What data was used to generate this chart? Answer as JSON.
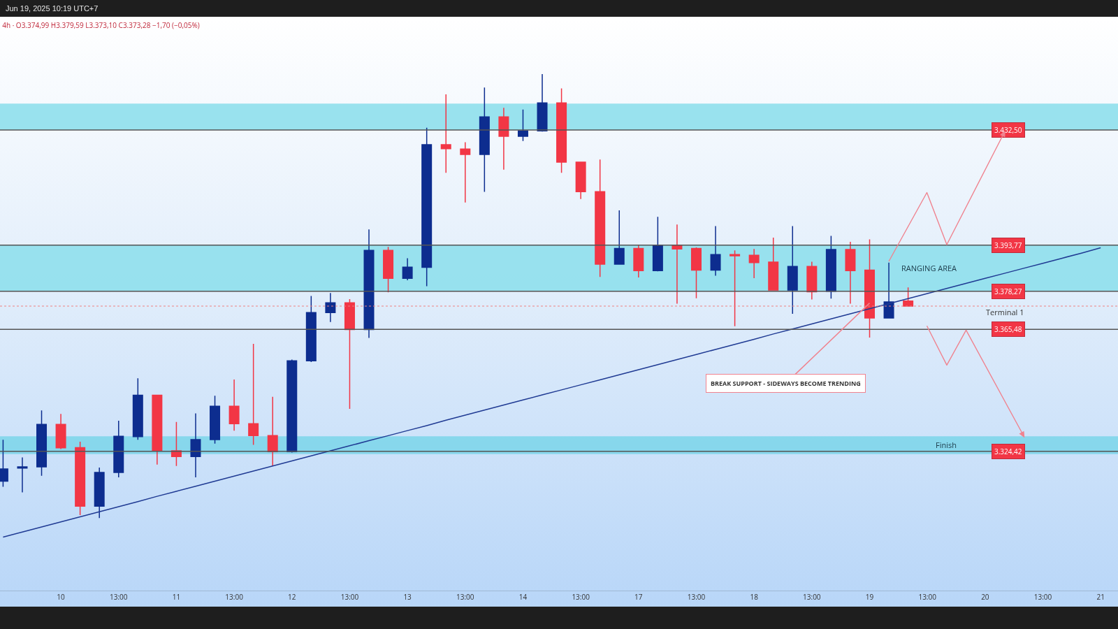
{
  "chart_data": {
    "type": "candlestick",
    "title": "4h · O3.374,99 H3.379,59 L3.373,10 C3.373,28 −1,70 (−0,05%)",
    "categories": [
      null,
      null,
      null,
      "10",
      null,
      null,
      "13:00",
      null,
      null,
      "11",
      null,
      null,
      "13:00",
      null,
      null,
      "12",
      null,
      null,
      "13:00",
      null,
      null,
      "13",
      null,
      null,
      "13:00",
      null,
      null,
      "14",
      null,
      null,
      "13:00",
      null,
      null,
      "17",
      null,
      null,
      "13:00",
      null,
      null,
      "18",
      null,
      null,
      "13:00",
      null,
      null,
      "19",
      null,
      null,
      "13:00",
      null,
      null,
      "20",
      null,
      null,
      "13:00",
      null,
      null,
      "21"
    ],
    "ohlc": [
      [
        3314.4,
        3328.3,
        3312.5,
        3318.5
      ],
      [
        3318.8,
        3322.4,
        3310.6,
        3319.2
      ],
      [
        3319.2,
        3338.2,
        3316.2,
        3333.5
      ],
      [
        3333.5,
        3337.0,
        3325.2,
        3325.6
      ],
      [
        3325.7,
        3327.7,
        3303.0,
        3306.0
      ],
      [
        3306.0,
        3319.0,
        3302.0,
        3317.3
      ],
      [
        3317.3,
        3334.7,
        3315.7,
        3329.5
      ],
      [
        3329.4,
        3349.0,
        3328.3,
        3343.3
      ],
      [
        3343.3,
        3343.5,
        3320.0,
        3324.6
      ],
      [
        3324.6,
        3334.3,
        3319.5,
        3322.7
      ],
      [
        3322.7,
        3337.2,
        3315.7,
        3328.4
      ],
      [
        3328.4,
        3343.1,
        3327.0,
        3339.6
      ],
      [
        3339.6,
        3348.6,
        3331.4,
        3333.7
      ],
      [
        3333.7,
        3360.6,
        3326.6,
        3329.7
      ],
      [
        3329.7,
        3342.8,
        3319.5,
        3324.3
      ],
      [
        3324.3,
        3355.3,
        3324.0,
        3354.9
      ],
      [
        3354.9,
        3376.7,
        3354.5,
        3371.1
      ],
      [
        3371.1,
        3377.7,
        3367.9,
        3374.4
      ],
      [
        3374.4,
        3375.6,
        3338.7,
        3365.4
      ],
      [
        3365.4,
        3399.1,
        3362.6,
        3392.0
      ],
      [
        3392.0,
        3393.2,
        3377.9,
        3382.6
      ],
      [
        3382.6,
        3389.4,
        3382.0,
        3386.4
      ],
      [
        3386.3,
        3433.3,
        3380.0,
        3427.6
      ],
      [
        3427.6,
        3444.5,
        3418.1,
        3426.2
      ],
      [
        3426.1,
        3428.4,
        3408.1,
        3424.3
      ],
      [
        3424.3,
        3446.8,
        3411.7,
        3436.9
      ],
      [
        3436.9,
        3440.0,
        3419.2,
        3430.4
      ],
      [
        3430.4,
        3439.4,
        3428.8,
        3432.2
      ],
      [
        3432.2,
        3451.3,
        3432.0,
        3441.6
      ],
      [
        3441.6,
        3446.5,
        3418.1,
        3421.7
      ],
      [
        3421.7,
        3421.9,
        3409.3,
        3411.8
      ],
      [
        3411.8,
        3422.6,
        3383.1,
        3387.4
      ],
      [
        3387.4,
        3405.5,
        3387.2,
        3392.7
      ],
      [
        3392.7,
        3393.8,
        3382.9,
        3385.2
      ],
      [
        3385.2,
        3403.3,
        3385.0,
        3393.8
      ],
      [
        3393.8,
        3400.7,
        3374.1,
        3392.5
      ],
      [
        3392.7,
        3393.0,
        3375.9,
        3385.4
      ],
      [
        3385.4,
        3400.2,
        3383.5,
        3390.6
      ],
      [
        3390.6,
        3392.0,
        3366.5,
        3390.2
      ],
      [
        3390.4,
        3392.5,
        3382.7,
        3387.9
      ],
      [
        3388.1,
        3396.3,
        3378.5,
        3378.7
      ],
      [
        3378.7,
        3400.2,
        3370.7,
        3386.6
      ],
      [
        3386.6,
        3388.2,
        3375.5,
        3378.1
      ],
      [
        3378.3,
        3396.9,
        3375.8,
        3392.3
      ],
      [
        3392.3,
        3394.9,
        3374.1,
        3385.2
      ],
      [
        3385.4,
        3395.7,
        3362.7,
        3369.3
      ],
      [
        3369.3,
        3387.9,
        3369.1,
        3374.7
      ],
      [
        3374.99,
        3379.59,
        3373.1,
        3373.28
      ],
      null,
      null,
      null,
      null,
      null,
      null,
      null,
      null,
      null,
      null
    ],
    "colors": [
      "#0d2d8f",
      "#0d2d8f",
      "#0d2d8f",
      "#f23645",
      "#f23645",
      "#0d2d8f",
      "#0d2d8f",
      "#0d2d8f",
      "#f23645",
      "#f23645",
      "#0d2d8f",
      "#0d2d8f",
      "#f23645",
      "#f23645",
      "#f23645",
      "#0d2d8f",
      "#0d2d8f",
      "#0d2d8f",
      "#f23645",
      "#0d2d8f",
      "#f23645",
      "#0d2d8f",
      "#0d2d8f",
      "#f23645",
      "#f23645",
      "#0d2d8f",
      "#f23645",
      "#0d2d8f",
      "#0d2d8f",
      "#f23645",
      "#f23645",
      "#f23645",
      "#0d2d8f",
      "#f23645",
      "#0d2d8f",
      "#f23645",
      "#f23645",
      "#0d2d8f",
      "#f23645",
      "#f23645",
      "#f23645",
      "#0d2d8f",
      "#f23645",
      "#0d2d8f",
      "#f23645",
      "#f23645",
      "#0d2d8f",
      "#f23645",
      null,
      null,
      null,
      null,
      null,
      null,
      null,
      null,
      null,
      null
    ],
    "series": [
      {
        "type": "line",
        "color": "#1f3a93",
        "values": [
          3295.6,
          3297.3,
          3299.0,
          3300.7,
          3302.4,
          3304.1,
          3305.8,
          3307.5,
          3309.3,
          3311.0,
          3312.7,
          3314.4,
          3316.1,
          3317.8,
          3319.5,
          3321.2,
          3322.9,
          3324.6,
          3326.3,
          3328.0,
          3329.7,
          3331.4,
          3333.1,
          3334.9,
          3336.6,
          3338.3,
          3340.0,
          3341.7,
          3343.4,
          3345.1,
          3346.8,
          3348.5,
          3350.2,
          3351.9,
          3353.6,
          3355.3,
          3357.0,
          3358.7,
          3360.4,
          3362.1,
          3363.9,
          3365.6,
          3367.3,
          3369.0,
          3370.7,
          3372.4,
          3374.1,
          3375.8,
          3377.5,
          3379.2,
          3380.9,
          3382.6,
          3384.3,
          3386.0,
          3387.7,
          3389.4,
          3391.1,
          3392.9
        ]
      }
    ],
    "ylim": [
      3277.6,
      3470.6
    ],
    "tick_labels": "x",
    "grid": false,
    "ref_lines": [
      {
        "axis": "y",
        "value": 3432.5,
        "label": "3.432,50",
        "color": "#555555"
      },
      {
        "axis": "y",
        "value": 3393.77,
        "label": "3.393,77",
        "color": "#555555"
      },
      {
        "axis": "y",
        "value": 3378.27,
        "label": "3.378,27",
        "color": "#555555"
      },
      {
        "axis": "y",
        "value": 3365.48,
        "label": "3.365,48",
        "color": "#555555"
      },
      {
        "axis": "y",
        "value": 3324.42,
        "label": "3.324,42",
        "color": "#555555"
      },
      {
        "axis": "y",
        "value": 3373.28,
        "label": "Terminal 1",
        "color": "#f08080",
        "line_style": "dotted"
      }
    ],
    "bands": [
      {
        "axis": "y",
        "from": 3432.5,
        "to": 3441.4,
        "color": "#8fdfec"
      },
      {
        "axis": "y",
        "from": 3378.27,
        "to": 3393.77,
        "label": "RANGING AREA",
        "color": "#8fdfec"
      },
      {
        "axis": "y",
        "from": 3323.5,
        "to": 3329.5,
        "label": "Finish",
        "color": "#7fd6ea"
      }
    ],
    "annotations": [
      "Jun 19, 2025 10:19 UTC+7",
      {
        "text": "BREAK SUPPORT - SIDEWAYS BECOME TRENDING",
        "x": "19",
        "y": 3374.3
      }
    ]
  }
}
